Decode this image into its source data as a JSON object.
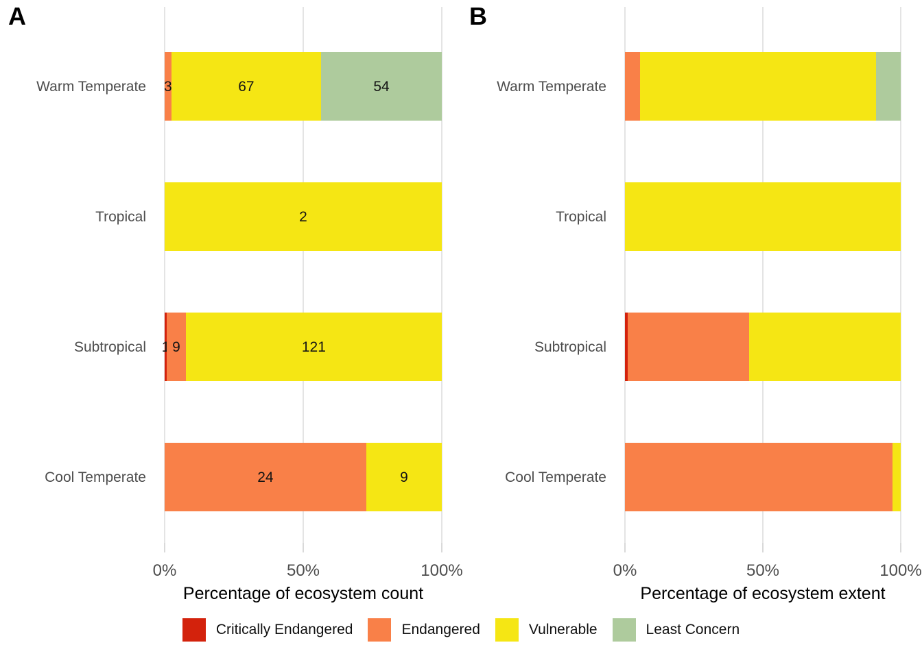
{
  "figure_tags": {
    "a": "A",
    "b": "B"
  },
  "colors": {
    "critically_endangered": "#d3220c",
    "endangered": "#f98048",
    "vulnerable": "#f5e614",
    "least_concern": "#aecb9d"
  },
  "legend": {
    "items": [
      {
        "key": "critically_endangered",
        "label": "Critically Endangered"
      },
      {
        "key": "endangered",
        "label": "Endangered"
      },
      {
        "key": "vulnerable",
        "label": "Vulnerable"
      },
      {
        "key": "least_concern",
        "label": "Least Concern"
      }
    ]
  },
  "chart_data": [
    {
      "panel": "A",
      "type": "bar",
      "orientation": "horizontal",
      "stacked": true,
      "units": "counts_shown_as_percent_of_row_total",
      "xlabel": "Percentage of ecosystem count",
      "x_ticks": [
        "0%",
        "50%",
        "100%"
      ],
      "xlim": [
        0,
        100
      ],
      "grid": "vertical-major-only",
      "value_labels_shown": true,
      "categories": [
        "Warm Temperate",
        "Tropical",
        "Subtropical",
        "Cool Temperate"
      ],
      "rows": [
        {
          "category": "Warm Temperate",
          "segments": [
            {
              "status": "endangered",
              "count": 3
            },
            {
              "status": "vulnerable",
              "count": 67
            },
            {
              "status": "least_concern",
              "count": 54
            }
          ]
        },
        {
          "category": "Tropical",
          "segments": [
            {
              "status": "vulnerable",
              "count": 2
            }
          ]
        },
        {
          "category": "Subtropical",
          "segments": [
            {
              "status": "critically_endangered",
              "count": 1
            },
            {
              "status": "endangered",
              "count": 9
            },
            {
              "status": "vulnerable",
              "count": 121
            }
          ]
        },
        {
          "category": "Cool Temperate",
          "segments": [
            {
              "status": "endangered",
              "count": 24
            },
            {
              "status": "vulnerable",
              "count": 9
            }
          ]
        }
      ]
    },
    {
      "panel": "B",
      "type": "bar",
      "orientation": "horizontal",
      "stacked": true,
      "units": "percent_of_ecosystem_extent",
      "xlabel": "Percentage of ecosystem extent",
      "x_ticks": [
        "0%",
        "50%",
        "100%"
      ],
      "xlim": [
        0,
        100
      ],
      "grid": "vertical-major-only",
      "value_labels_shown": false,
      "categories": [
        "Warm Temperate",
        "Tropical",
        "Subtropical",
        "Cool Temperate"
      ],
      "rows": [
        {
          "category": "Warm Temperate",
          "segments": [
            {
              "status": "endangered",
              "percent": 5.5
            },
            {
              "status": "vulnerable",
              "percent": 85.5
            },
            {
              "status": "least_concern",
              "percent": 9
            }
          ]
        },
        {
          "category": "Tropical",
          "segments": [
            {
              "status": "vulnerable",
              "percent": 100
            }
          ]
        },
        {
          "category": "Subtropical",
          "segments": [
            {
              "status": "critically_endangered",
              "percent": 1
            },
            {
              "status": "endangered",
              "percent": 44
            },
            {
              "status": "vulnerable",
              "percent": 55
            }
          ]
        },
        {
          "category": "Cool Temperate",
          "segments": [
            {
              "status": "endangered",
              "percent": 97
            },
            {
              "status": "vulnerable",
              "percent": 3
            }
          ]
        }
      ]
    }
  ]
}
